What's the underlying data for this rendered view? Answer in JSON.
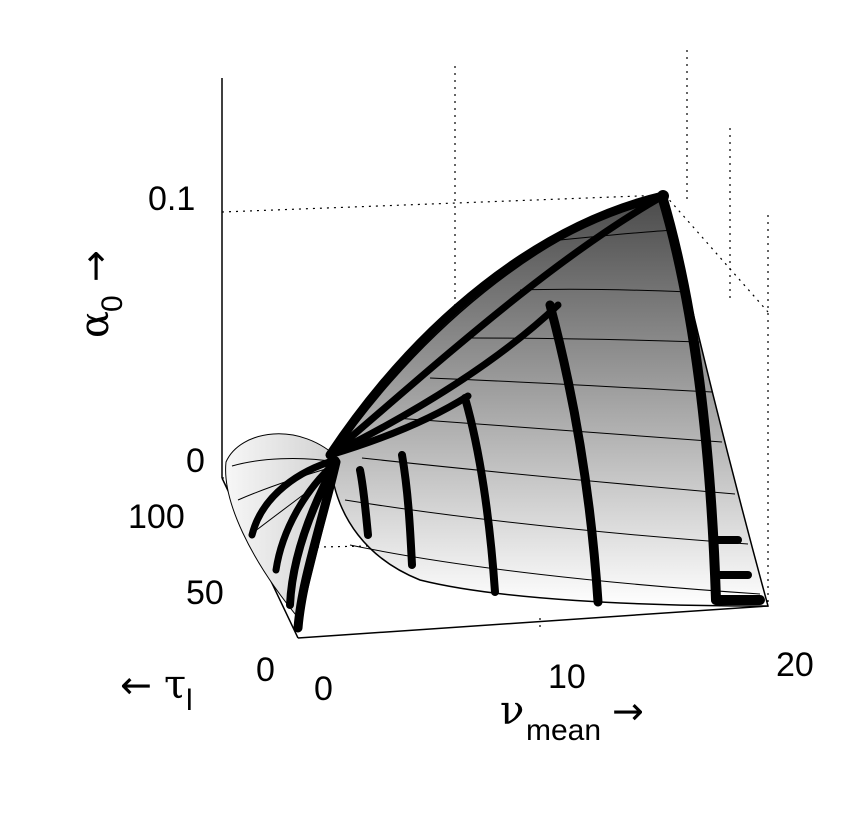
{
  "chart_data": {
    "type": "surface3d",
    "surface": "alpha_0 as a function of nu_mean and tau_l",
    "axes": {
      "x": {
        "name": "ν",
        "subscript": "mean",
        "arrow": "→",
        "ticks": [
          "0",
          "10",
          "20"
        ],
        "range": [
          0,
          20
        ]
      },
      "y": {
        "name": "τ",
        "subscript": "l",
        "arrow": "←",
        "ticks": [
          "0",
          "50",
          "100"
        ],
        "range": [
          0,
          100
        ]
      },
      "z": {
        "name": "α",
        "subscript": "0",
        "arrow": "→",
        "ticks": [
          "0",
          "0.1"
        ],
        "range": [
          0,
          0.14
        ]
      }
    },
    "grid": true,
    "shading": "grayscale gradient, dark near apex (alpha_0 ≈ 0.1) to white near base",
    "thick_curves_nu_mean": [
      2.5,
      4,
      8,
      12,
      18
    ],
    "thick_curves_tau_l": [
      10,
      30,
      60
    ],
    "apex": {
      "nu_mean": 18,
      "tau_l": 100,
      "alpha_0": 0.1
    }
  }
}
